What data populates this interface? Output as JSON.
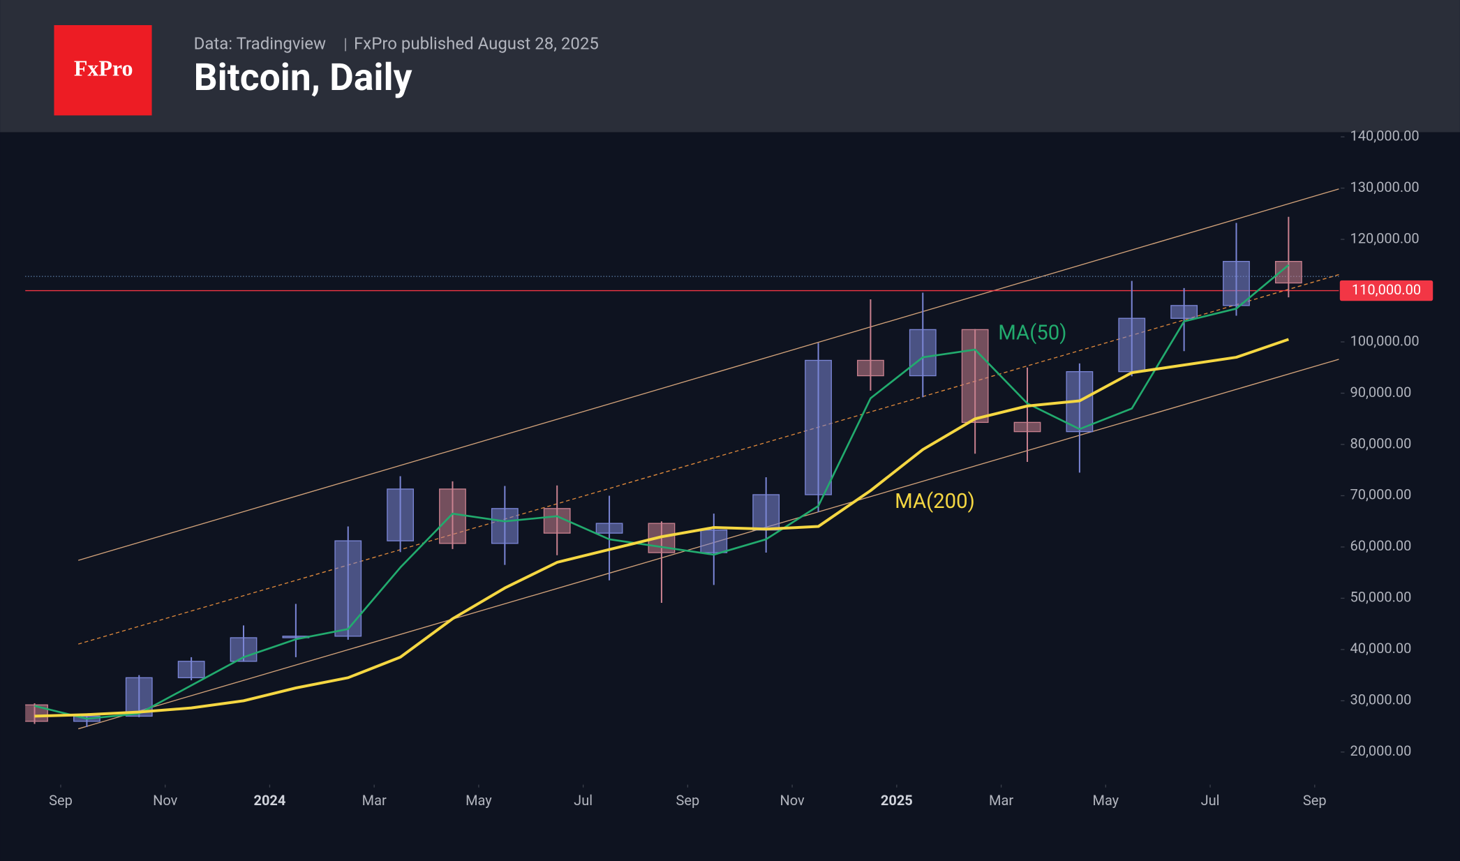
{
  "chart_data": {
    "type": "candlestick",
    "logo": "FxPro",
    "source": "Data: Tradingview",
    "publisher": "FxPro published August 28, 2025",
    "title": "Bitcoin, Daily",
    "x": [
      "2023-08",
      "2023-09",
      "2023-10",
      "2023-11",
      "2023-12",
      "2024-01",
      "2024-02",
      "2024-03",
      "2024-04",
      "2024-05",
      "2024-06",
      "2024-07",
      "2024-08",
      "2024-09",
      "2024-10",
      "2024-11",
      "2024-12",
      "2025-01",
      "2025-02",
      "2025-03",
      "2025-04",
      "2025-05",
      "2025-06",
      "2025-07",
      "2025-08"
    ],
    "open": [
      29200,
      26000,
      27000,
      34500,
      37700,
      42300,
      42600,
      61200,
      71300,
      60700,
      67500,
      62700,
      64600,
      58900,
      63300,
      70200,
      96400,
      93400,
      102400,
      84300,
      82500,
      94200,
      104600,
      107100,
      115700
    ],
    "high": [
      29500,
      27500,
      35000,
      38500,
      44700,
      48900,
      64000,
      73800,
      72800,
      71900,
      72000,
      70000,
      65000,
      66500,
      73600,
      99800,
      108300,
      109600,
      102500,
      95000,
      95800,
      111900,
      110500,
      123200,
      124400
    ],
    "low": [
      25500,
      24900,
      26800,
      34000,
      37600,
      38500,
      41900,
      59000,
      59600,
      56500,
      58400,
      53500,
      49100,
      52600,
      58900,
      66800,
      90500,
      89200,
      78200,
      76600,
      74500,
      93300,
      98200,
      105100,
      108700
    ],
    "close": [
      26000,
      27000,
      34500,
      37700,
      42300,
      42600,
      61200,
      71300,
      60700,
      67500,
      62700,
      64600,
      58900,
      63300,
      70200,
      96400,
      93400,
      102400,
      84300,
      82500,
      94200,
      104600,
      107100,
      115700,
      111500
    ],
    "up_color": "#7b86d6",
    "down_color": "#c9818f",
    "series": [
      {
        "name": "MA(50)",
        "color": "#22ab6e",
        "values": [
          29000,
          26500,
          27500,
          33000,
          38500,
          42000,
          44000,
          56000,
          66500,
          65000,
          66000,
          61500,
          60000,
          58500,
          61500,
          68000,
          89000,
          97000,
          98500,
          88000,
          83000,
          87000,
          104000,
          106500,
          115000
        ]
      },
      {
        "name": "MA(200)",
        "color": "#f5d742",
        "values": [
          27000,
          27300,
          27800,
          28600,
          30000,
          32500,
          34500,
          38500,
          46000,
          52000,
          57000,
          59500,
          62000,
          63800,
          63500,
          64000,
          71000,
          79000,
          85000,
          87500,
          88500,
          94000,
          95500,
          97000,
          100500
        ]
      }
    ],
    "price_line": {
      "value": 110000,
      "label": "110,000.00",
      "color": "#f23645"
    },
    "xlim": [
      "2023-08",
      "2025-09"
    ],
    "xticks": [
      {
        "value": "2023-09",
        "label": "Sep"
      },
      {
        "value": "2023-11",
        "label": "Nov"
      },
      {
        "value": "2024-01",
        "label": "2024"
      },
      {
        "value": "2024-03",
        "label": "Mar"
      },
      {
        "value": "2024-05",
        "label": "May"
      },
      {
        "value": "2024-07",
        "label": "Jul"
      },
      {
        "value": "2024-09",
        "label": "Sep"
      },
      {
        "value": "2024-11",
        "label": "Nov"
      },
      {
        "value": "2025-01",
        "label": "2025"
      },
      {
        "value": "2025-03",
        "label": "Mar"
      },
      {
        "value": "2025-05",
        "label": "May"
      },
      {
        "value": "2025-07",
        "label": "Jul"
      },
      {
        "value": "2025-09",
        "label": "Sep"
      }
    ],
    "ylim": [
      14000,
      141000
    ],
    "yticks": [
      {
        "value": 20000,
        "label": "20,000.00"
      },
      {
        "value": 30000,
        "label": "30,000.00"
      },
      {
        "value": 40000,
        "label": "40,000.00"
      },
      {
        "value": 50000,
        "label": "50,000.00"
      },
      {
        "value": 60000,
        "label": "60,000.00"
      },
      {
        "value": 70000,
        "label": "70,000.00"
      },
      {
        "value": 80000,
        "label": "80,000.00"
      },
      {
        "value": 90000,
        "label": "90,000.00"
      },
      {
        "value": 100000,
        "label": "100,000.00"
      },
      {
        "value": 120000,
        "label": "120,000.00"
      },
      {
        "value": 130000,
        "label": "130,000.00"
      },
      {
        "value": 140000,
        "label": "140,000.00"
      }
    ]
  }
}
